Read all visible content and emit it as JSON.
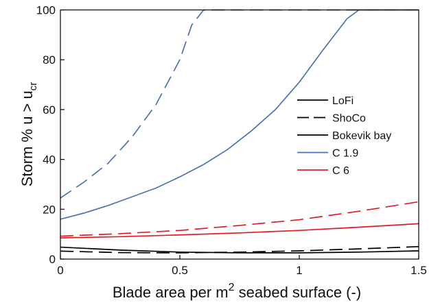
{
  "chart_data": {
    "type": "line",
    "xlabel_main": "Blade area per m",
    "xlabel_sup": "2",
    "xlabel_rest": " seabed surface (-)",
    "ylabel_main": "Storm % u > u",
    "ylabel_sub": "cr",
    "xlim": [
      0,
      1.5
    ],
    "ylim": [
      0,
      100
    ],
    "xticks": [
      0,
      0.5,
      1,
      1.5
    ],
    "xtick_labels": [
      "0",
      "0.5",
      "1",
      "1.5"
    ],
    "yticks": [
      0,
      20,
      40,
      60,
      80,
      100
    ],
    "ytick_labels": [
      "0",
      "20",
      "40",
      "60",
      "80",
      "100"
    ],
    "legend_position": "center-right",
    "legend": [
      {
        "label": "LoFi",
        "color": "#000000",
        "dash": "solid"
      },
      {
        "label": "ShoCo",
        "color": "#000000",
        "dash": "dashed"
      },
      {
        "label": "Bokevik bay",
        "color": "#000000",
        "dash": "solid"
      },
      {
        "label": "C 1.9",
        "color": "#4a72b5",
        "dash": "solid"
      },
      {
        "label": "C 6",
        "color": "#e21b23",
        "dash": "solid"
      }
    ],
    "series": [
      {
        "color": "#4a72b5",
        "dash": "dashed",
        "x": [
          0,
          0.1,
          0.2,
          0.3,
          0.4,
          0.5,
          0.55,
          0.6,
          0.65,
          0.7,
          0.8,
          0.9,
          1.0,
          1.1,
          1.2,
          1.3,
          1.4,
          1.5
        ],
        "y": [
          24.5,
          31,
          38.5,
          49,
          62,
          80,
          94,
          100,
          100,
          100,
          100,
          100,
          100,
          100,
          100,
          100,
          100,
          100
        ]
      },
      {
        "color": "#4a72b5",
        "dash": "solid",
        "x": [
          0,
          0.1,
          0.2,
          0.3,
          0.4,
          0.5,
          0.6,
          0.7,
          0.8,
          0.9,
          1.0,
          1.1,
          1.2,
          1.25,
          1.3,
          1.4,
          1.5
        ],
        "y": [
          16,
          18.5,
          21.5,
          25,
          28.5,
          33,
          38,
          44,
          51.5,
          60,
          71,
          84,
          96.5,
          100,
          100,
          100,
          100
        ]
      },
      {
        "color": "#e21b23",
        "dash": "dashed",
        "x": [
          0,
          0.25,
          0.5,
          0.75,
          1.0,
          1.25,
          1.5
        ],
        "y": [
          9.2,
          10.2,
          11.5,
          13.5,
          15.8,
          19.2,
          23
        ]
      },
      {
        "color": "#e21b23",
        "dash": "solid",
        "x": [
          0,
          0.25,
          0.5,
          0.75,
          1.0,
          1.25,
          1.5
        ],
        "y": [
          8.5,
          9,
          9.7,
          10.5,
          11.5,
          12.8,
          14.2
        ]
      },
      {
        "color": "#000000",
        "dash": "dashed",
        "x": [
          0,
          0.25,
          0.5,
          0.75,
          1.0,
          1.25,
          1.5
        ],
        "y": [
          3.2,
          2.6,
          2.5,
          2.8,
          3.3,
          4.1,
          5
        ]
      },
      {
        "color": "#000000",
        "dash": "solid",
        "x": [
          0,
          0.25,
          0.5,
          0.75,
          1.0,
          1.25,
          1.5
        ],
        "y": [
          4.8,
          3.6,
          2.8,
          2.5,
          2.5,
          2.8,
          3.3
        ]
      }
    ]
  }
}
